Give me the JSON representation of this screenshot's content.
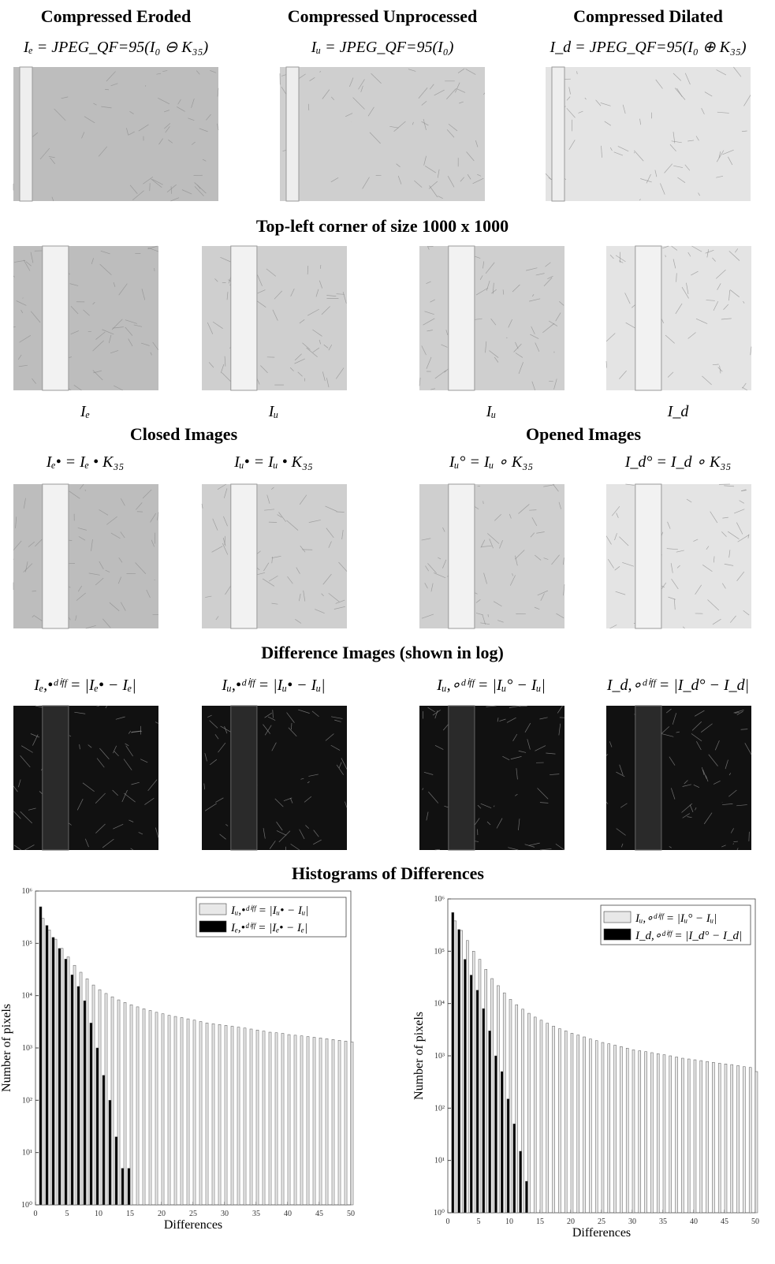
{
  "figure": {
    "row1": {
      "titles": [
        "Compressed Eroded",
        "Compressed Unprocessed",
        "Compressed Dilated"
      ],
      "formulas": [
        "Iₑ = JPEG_QF=95(I₀ ⊖ K₃₅)",
        "Iᵤ = JPEG_QF=95(I₀)",
        "I_d = JPEG_QF=95(I₀ ⊕ K₃₅)"
      ]
    },
    "row2": {
      "title": "Top-left corner of size 1000 x 1000",
      "captions": [
        "Iₑ",
        "Iᵤ",
        "Iᵤ",
        "I_d"
      ]
    },
    "row3": {
      "titles": [
        "Closed Images",
        "Opened Images"
      ],
      "formulas": [
        "Iₑ• = Iₑ • K₃₅",
        "Iᵤ• = Iᵤ • K₃₅",
        "Iᵤ° = Iᵤ ∘ K₃₅",
        "I_d° = I_d ∘ K₃₅"
      ]
    },
    "row4": {
      "title": "Difference Images (shown in log)",
      "formulas": [
        "Iₑ,•ᵈⁱᶠᶠ = |Iₑ• − Iₑ|",
        "Iᵤ,•ᵈⁱᶠᶠ = |Iᵤ• − Iᵤ|",
        "Iᵤ,∘ᵈⁱᶠᶠ = |Iᵤ° − Iᵤ|",
        "I_d,∘ᵈⁱᶠᶠ = |I_d° − I_d|"
      ]
    },
    "row5": {
      "title": "Histograms of Differences"
    }
  },
  "chart_data": [
    {
      "type": "bar",
      "xlabel": "Differences",
      "ylabel": "Number of pixels",
      "log_y": true,
      "legend": "upper right",
      "x": [
        1,
        2,
        3,
        4,
        5,
        6,
        7,
        8,
        9,
        10,
        11,
        12,
        13,
        14,
        15,
        16,
        17,
        18,
        19,
        20,
        21,
        22,
        23,
        24,
        25,
        26,
        27,
        28,
        29,
        30,
        31,
        32,
        33,
        34,
        35,
        36,
        37,
        38,
        39,
        40,
        41,
        42,
        43,
        44,
        45,
        46,
        47,
        48,
        49,
        50
      ],
      "xlim": [
        0,
        50
      ],
      "xticks": [
        0,
        5,
        10,
        15,
        20,
        25,
        30,
        35,
        40,
        45,
        50
      ],
      "ylim": [
        1,
        1000000
      ],
      "yticks": [
        {
          "value": 1,
          "label": "10⁰"
        },
        {
          "value": 10,
          "label": "10¹"
        },
        {
          "value": 100,
          "label": "10²"
        },
        {
          "value": 1000,
          "label": "10³"
        },
        {
          "value": 10000,
          "label": "10⁴"
        },
        {
          "value": 100000,
          "label": "10⁵"
        },
        {
          "value": 1000000,
          "label": "10⁶"
        }
      ],
      "series": [
        {
          "name": "Iᵤ,•ᵈⁱᶠᶠ = |Iᵤ• − Iᵤ|",
          "color": "#e8e8e8",
          "values": [
            300000,
            180000,
            120000,
            80000,
            55000,
            38000,
            28000,
            21000,
            16000,
            13000,
            11000,
            9500,
            8300,
            7400,
            6700,
            6100,
            5600,
            5200,
            4800,
            4500,
            4200,
            4000,
            3800,
            3600,
            3400,
            3200,
            3000,
            2900,
            2800,
            2700,
            2600,
            2500,
            2400,
            2300,
            2200,
            2100,
            2000,
            1950,
            1900,
            1800,
            1750,
            1700,
            1650,
            1600,
            1550,
            1500,
            1450,
            1400,
            1350,
            1300
          ]
        },
        {
          "name": "Iₑ,•ᵈⁱᶠᶠ = |Iₑ• − Iₑ|",
          "color": "#000000",
          "values": [
            500000,
            220000,
            130000,
            80000,
            50000,
            25000,
            15000,
            8000,
            3000,
            1000,
            300,
            100,
            20,
            5,
            5,
            null,
            null,
            null,
            null,
            null,
            null,
            null,
            null,
            null,
            null,
            null,
            null,
            null,
            null,
            null,
            null,
            null,
            null,
            null,
            null,
            null,
            null,
            null,
            null,
            null,
            null,
            null,
            null,
            null,
            null,
            null,
            null,
            null,
            null,
            null
          ]
        }
      ]
    },
    {
      "type": "bar",
      "xlabel": "Differences",
      "ylabel": "Number of pixels",
      "log_y": true,
      "legend": "upper right",
      "x": [
        1,
        2,
        3,
        4,
        5,
        6,
        7,
        8,
        9,
        10,
        11,
        12,
        13,
        14,
        15,
        16,
        17,
        18,
        19,
        20,
        21,
        22,
        23,
        24,
        25,
        26,
        27,
        28,
        29,
        30,
        31,
        32,
        33,
        34,
        35,
        36,
        37,
        38,
        39,
        40,
        41,
        42,
        43,
        44,
        45,
        46,
        47,
        48,
        49,
        50
      ],
      "xlim": [
        0,
        50
      ],
      "xticks": [
        0,
        5,
        10,
        15,
        20,
        25,
        30,
        35,
        40,
        45,
        50
      ],
      "ylim": [
        1,
        1000000
      ],
      "yticks": [
        {
          "value": 1,
          "label": "10⁰"
        },
        {
          "value": 10,
          "label": "10¹"
        },
        {
          "value": 100,
          "label": "10²"
        },
        {
          "value": 1000,
          "label": "10³"
        },
        {
          "value": 10000,
          "label": "10⁴"
        },
        {
          "value": 100000,
          "label": "10⁵"
        },
        {
          "value": 1000000,
          "label": "10⁶"
        }
      ],
      "series": [
        {
          "name": "Iᵤ,∘ᵈⁱᶠᶠ = |Iᵤ° − Iᵤ|",
          "color": "#e8e8e8",
          "values": [
            380000,
            250000,
            160000,
            100000,
            70000,
            45000,
            30000,
            22000,
            16000,
            12000,
            9500,
            7800,
            6500,
            5500,
            4800,
            4200,
            3700,
            3300,
            3000,
            2700,
            2500,
            2300,
            2100,
            1950,
            1800,
            1700,
            1600,
            1500,
            1400,
            1300,
            1250,
            1200,
            1150,
            1100,
            1050,
            1000,
            950,
            900,
            870,
            840,
            810,
            780,
            750,
            720,
            700,
            680,
            650,
            620,
            600,
            500
          ]
        },
        {
          "name": "I_d,∘ᵈⁱᶠᶠ = |I_d° − I_d|",
          "color": "#000000",
          "values": [
            550000,
            260000,
            70000,
            35000,
            18000,
            8000,
            3000,
            1000,
            500,
            150,
            50,
            15,
            4,
            null,
            null,
            null,
            null,
            null,
            null,
            null,
            null,
            null,
            null,
            null,
            null,
            null,
            null,
            null,
            null,
            null,
            null,
            null,
            null,
            null,
            null,
            null,
            null,
            null,
            null,
            null,
            null,
            null,
            null,
            null,
            null,
            null,
            null,
            null,
            null,
            null
          ]
        }
      ]
    }
  ]
}
